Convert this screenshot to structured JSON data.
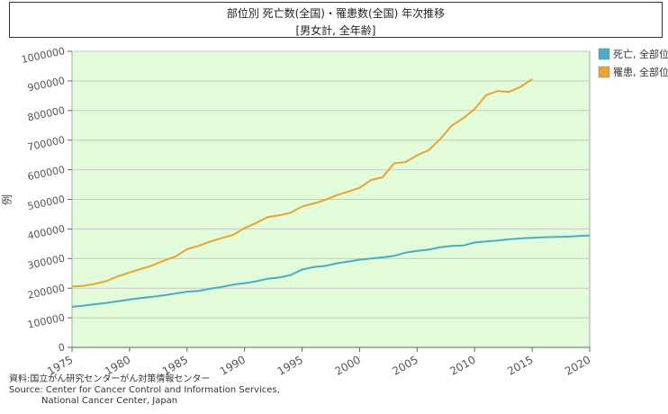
{
  "chart_data": {
    "type": "line",
    "title": "部位別 死亡数(全国)・罹患数(全国) 年次推移",
    "subtitle": "[男女計, 全年齢]",
    "ylabel": "例",
    "xlim": [
      1975,
      2020
    ],
    "ylim": [
      0,
      1000000
    ],
    "xticks": [
      1975,
      1980,
      1985,
      1990,
      1995,
      2000,
      2005,
      2010,
      2015,
      2020
    ],
    "yticks": [
      0,
      100000,
      200000,
      300000,
      400000,
      500000,
      600000,
      700000,
      800000,
      900000,
      1000000
    ],
    "grid": true,
    "legend_position": "right",
    "background": "#e2fbd9",
    "series": [
      {
        "name": "死亡, 全部位",
        "color": "#4bacc6",
        "x": [
          1975,
          1976,
          1977,
          1978,
          1979,
          1980,
          1981,
          1982,
          1983,
          1984,
          1985,
          1986,
          1987,
          1988,
          1989,
          1990,
          1991,
          1992,
          1993,
          1994,
          1995,
          1996,
          1997,
          1998,
          1999,
          2000,
          2001,
          2002,
          2003,
          2004,
          2005,
          2006,
          2007,
          2008,
          2009,
          2010,
          2011,
          2012,
          2013,
          2014,
          2015,
          2016,
          2017,
          2018,
          2019,
          2020
        ],
        "values": [
          137000,
          141000,
          146000,
          150000,
          156000,
          162000,
          167000,
          171000,
          176000,
          182000,
          188000,
          191000,
          198000,
          204000,
          212000,
          217000,
          223000,
          232000,
          236000,
          244000,
          263000,
          271000,
          275000,
          284000,
          290000,
          296000,
          300000,
          304000,
          309000,
          320000,
          326000,
          330000,
          338000,
          343000,
          344000,
          354000,
          358000,
          361000,
          365000,
          368000,
          370000,
          372000,
          373000,
          374000,
          376000,
          378000
        ]
      },
      {
        "name": "罹患, 全部位",
        "color": "#e8a530",
        "x": [
          1975,
          1976,
          1977,
          1978,
          1979,
          1980,
          1981,
          1982,
          1983,
          1984,
          1985,
          1986,
          1987,
          1988,
          1989,
          1990,
          1991,
          1992,
          1993,
          1994,
          1995,
          1996,
          1997,
          1998,
          1999,
          2000,
          2001,
          2002,
          2003,
          2004,
          2005,
          2006,
          2007,
          2008,
          2009,
          2010,
          2011,
          2012,
          2013,
          2014,
          2015
        ],
        "values": [
          206000,
          208000,
          215000,
          224000,
          240000,
          253000,
          265000,
          277000,
          293000,
          307000,
          332000,
          343000,
          357000,
          369000,
          380000,
          403000,
          420000,
          440000,
          446000,
          455000,
          476000,
          486000,
          498000,
          514000,
          526000,
          539000,
          565000,
          575000,
          622000,
          626000,
          649000,
          666000,
          703000,
          749000,
          774000,
          805000,
          852000,
          866000,
          863000,
          880000,
          906000
        ]
      }
    ]
  },
  "source": {
    "line1": "資料:国立がん研究センターがん対策情報センター",
    "line2": "Source: Center for Cancer Control and Information Services,",
    "line3": "National Cancer Center, Japan"
  }
}
